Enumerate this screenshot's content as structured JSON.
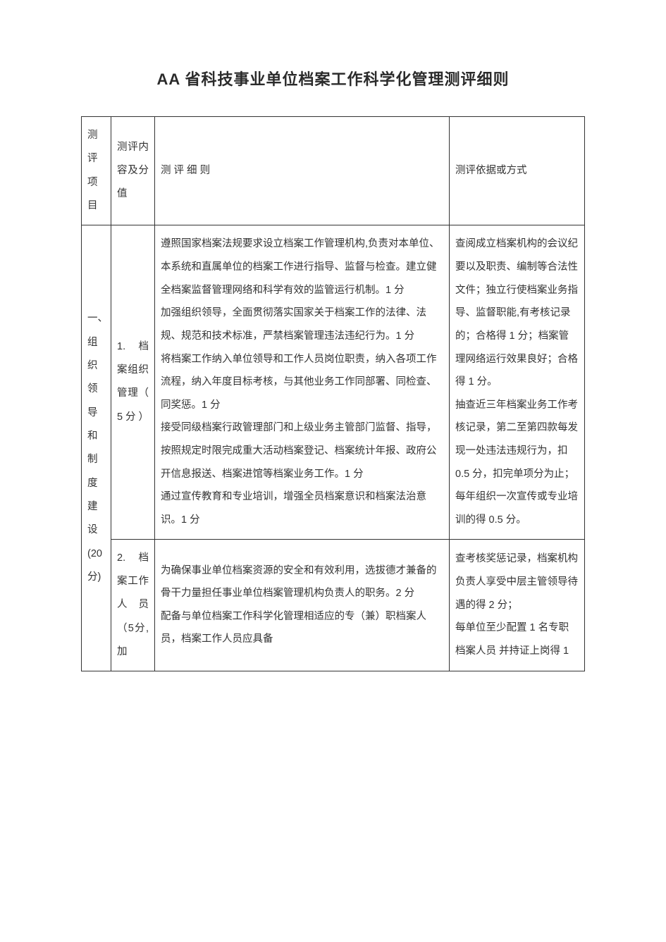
{
  "title": "AA 省科技事业单位档案工作科学化管理测评细则",
  "headers": {
    "project": "测评项目",
    "content": "测评内容及分值",
    "detail": "测 评 细 则",
    "basis": "测评依据或方式"
  },
  "col1": {
    "category": "一、组织领导和制度建设(20分)"
  },
  "row1": {
    "content": "1. 档案组织管理（ 5分）",
    "detail": "遵照国家档案法规要求设立档案工作管理机构,负责对本单位、本系统和直属单位的档案工作进行指导、监督与检查。建立健全档案监督管理网络和科学有效的监管运行机制。1 分\n加强组织领导，全面贯彻落实国家关于档案工作的法律、法规、规范和技术标准，严禁档案管理违法违纪行为。1 分\n将档案工作纳入单位领导和工作人员岗位职责，纳入各项工作流程，纳入年度目标考核，与其他业务工作同部署、同检查、同奖惩。1 分\n接受同级档案行政管理部门和上级业务主管部门监督、指导，按照规定时限完成重大活动档案登记、档案统计年报、政府公开信息报送、档案进馆等档案业务工作。1 分\n通过宣传教育和专业培训，增强全员档案意识和档案法治意识。1 分",
    "basis": "查阅成立档案机构的会议纪要以及职责、编制等合法性文件；独立行使档案业务指导、监督职能,有考核记录的；合格得 1 分；档案管理网络运行效果良好；合格得 1 分。\n抽查近三年档案业务工作考核记录，第二至第四款每发现一处违法违规行为，扣 0.5 分，扣完单项分为止；\n每年组织一次宣传或专业培训的得 0.5 分。"
  },
  "row2": {
    "content": "2. 档案工作人员（5分,加",
    "detail": "为确保事业单位档案资源的安全和有效利用，选拔德才兼备的骨干力量担任事业单位档案管理机构负责人的职务。2 分\n配备与单位档案工作科学化管理相适应的专（兼）职档案人员，档案工作人员应具备",
    "basis": "查考核奖惩记录，档案机构负责人享受中层主管领导待遇的得 2 分；\n每单位至少配置 1 名专职档案人员  并持证上岗得 1"
  }
}
